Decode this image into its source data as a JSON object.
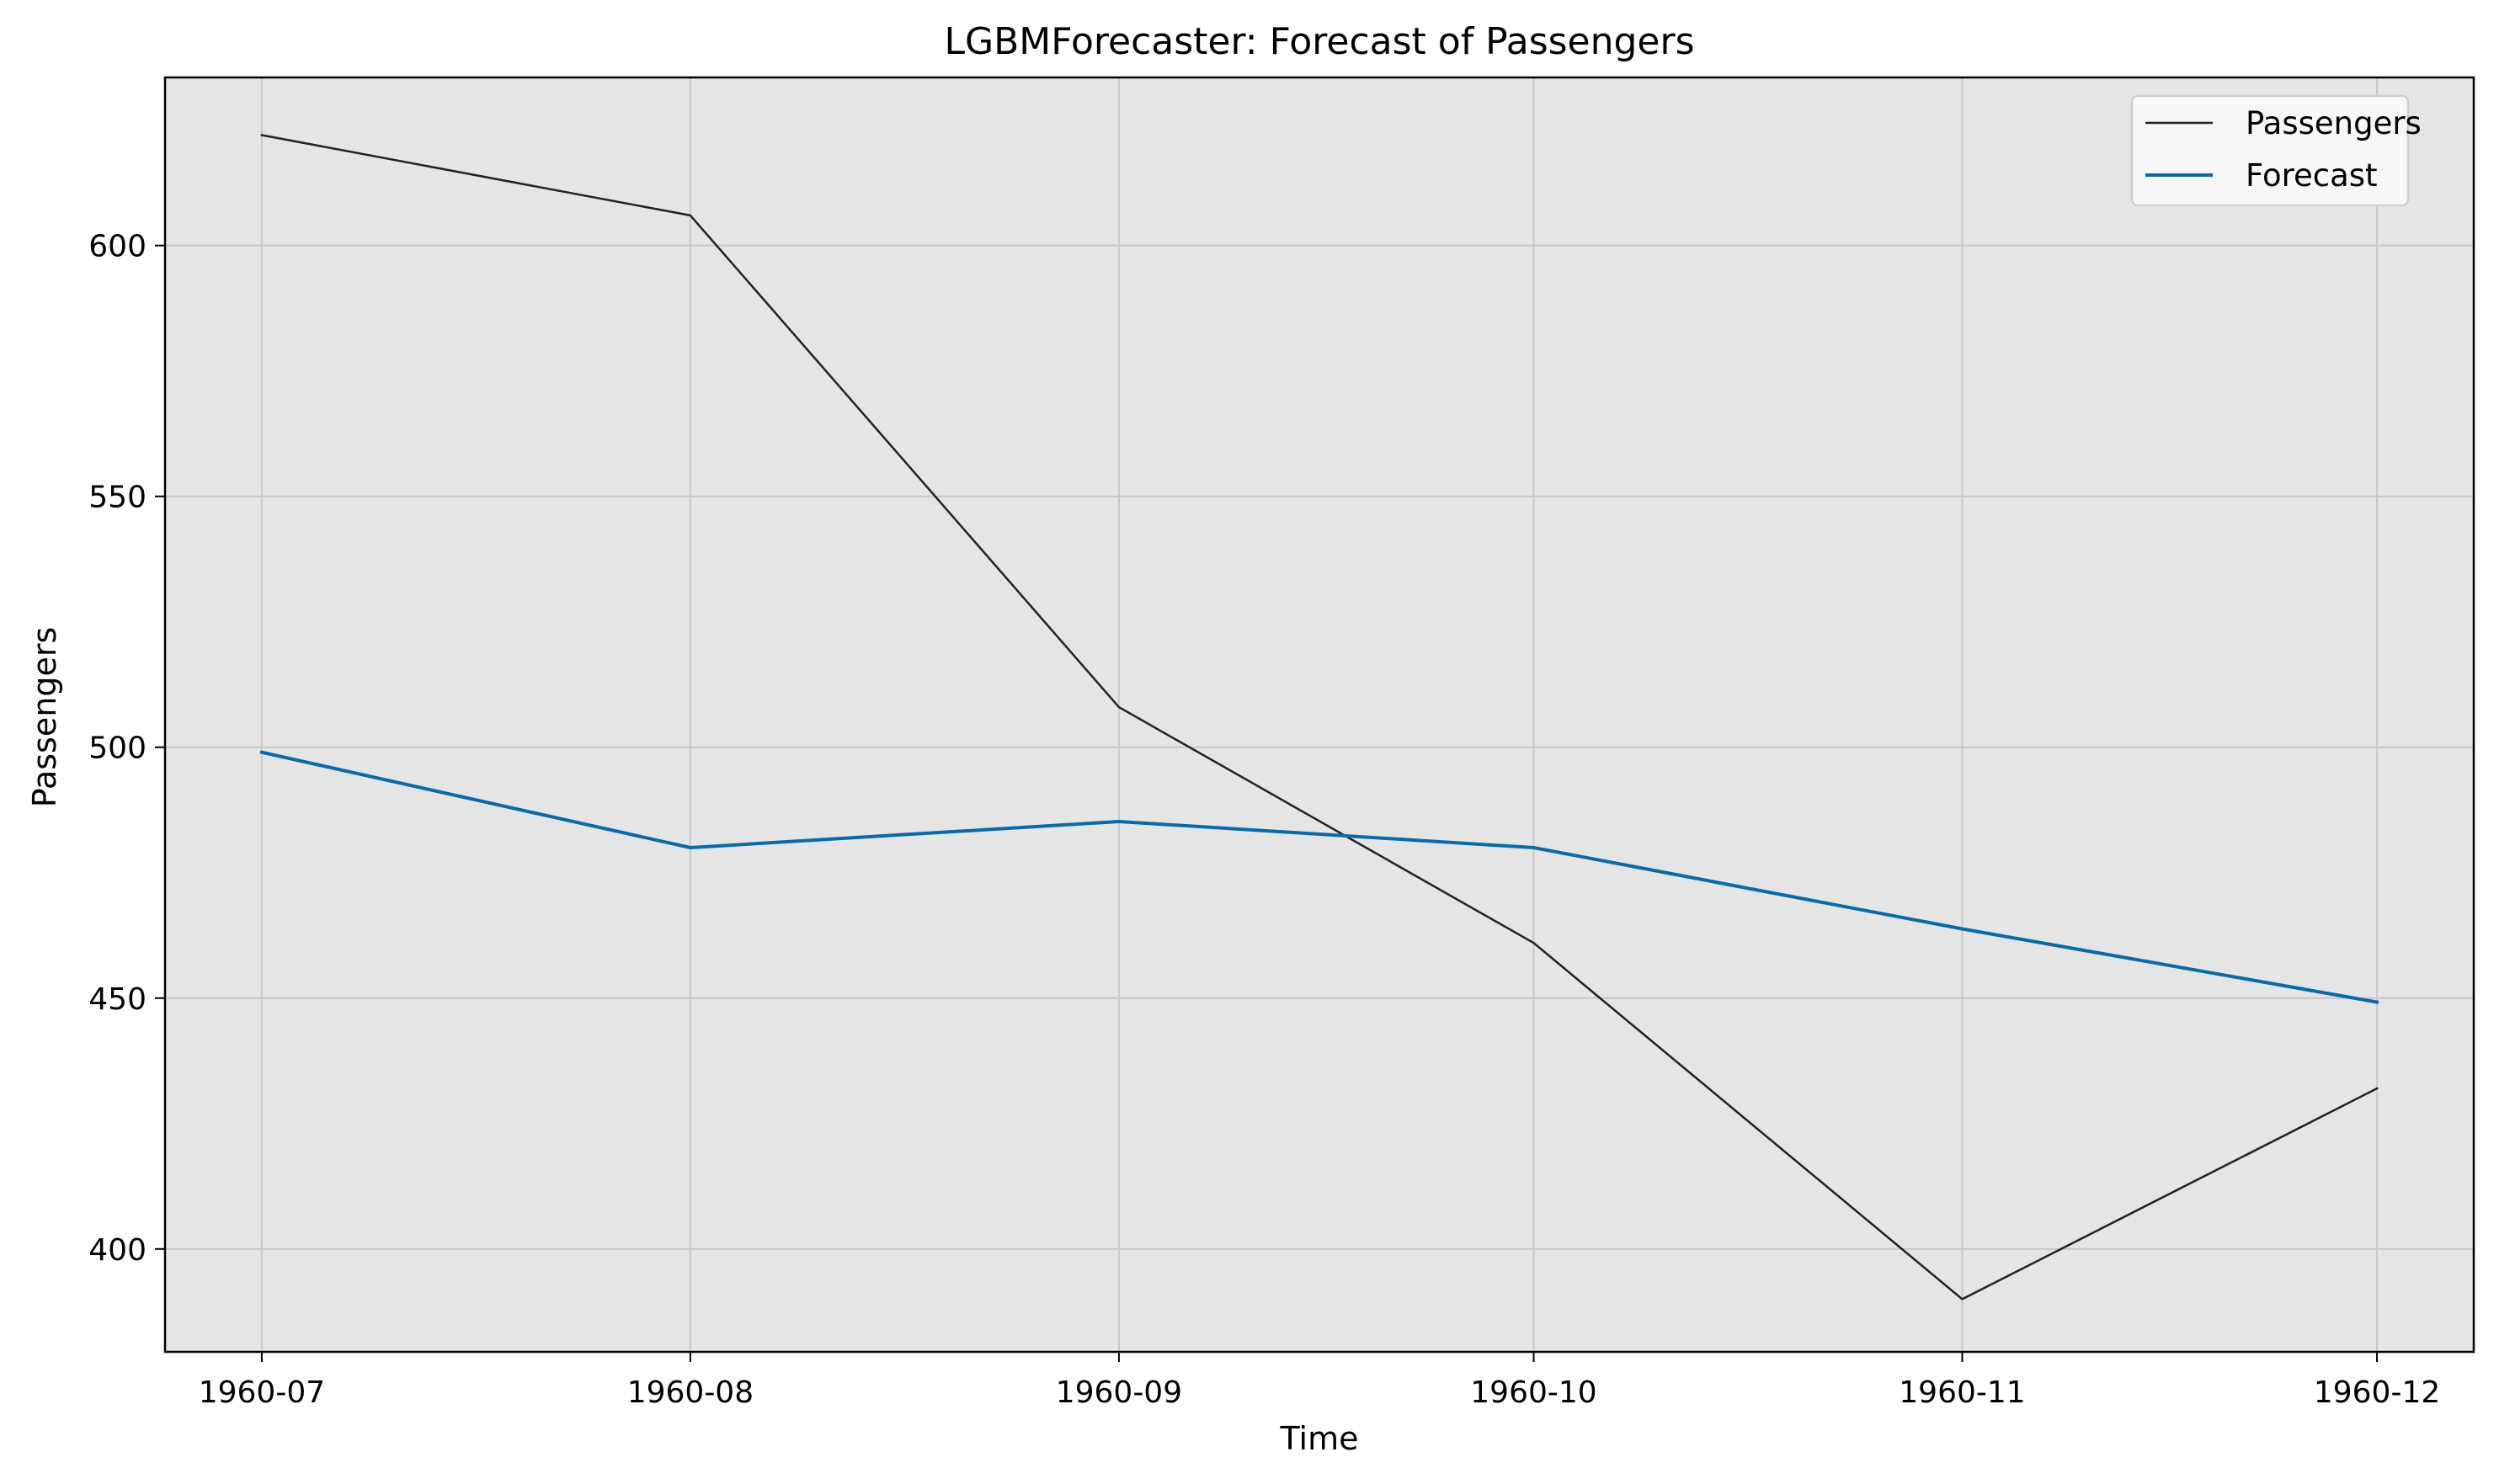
{
  "chart_data": {
    "type": "line",
    "title": "LGBMForecaster: Forecast of Passengers",
    "xlabel": "Time",
    "ylabel": "Passengers",
    "x": [
      "1960-07",
      "1960-08",
      "1960-09",
      "1960-10",
      "1960-11",
      "1960-12"
    ],
    "x_tick_labels": [
      "1960-07",
      "1960-08",
      "1960-09",
      "1960-10",
      "1960-11",
      "1960-12"
    ],
    "y_ticks": [
      400,
      450,
      500,
      550,
      600
    ],
    "ylim": [
      379.5,
      633.5
    ],
    "xlim": [
      "1960-06-24",
      "1960-12-08"
    ],
    "grid": true,
    "legend_position": "top-right",
    "series": [
      {
        "name": "Passengers",
        "color": "#222222",
        "values": [
          622,
          606,
          508,
          461,
          390,
          432
        ]
      },
      {
        "name": "Forecast",
        "color": "#0a6aa9",
        "values": [
          499,
          480,
          485.2,
          480,
          463.8,
          449.2
        ]
      }
    ],
    "plot_background": "#e5e5e5"
  }
}
